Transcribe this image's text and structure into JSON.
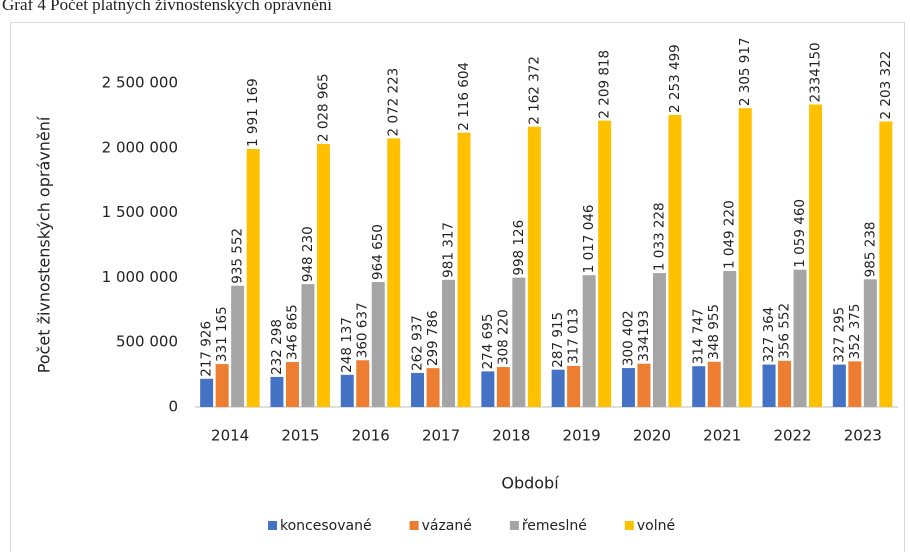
{
  "chart_data": {
    "type": "bar",
    "title": "Graf 4 Počet platných živnostenských oprávnění",
    "x_label": "Období",
    "y_label": "Počet živnostenských oprávnění",
    "categories": [
      "2014",
      "2015",
      "2016",
      "2017",
      "2018",
      "2019",
      "2020",
      "2021",
      "2022",
      "2023"
    ],
    "series": [
      {
        "name": "koncesované",
        "color": "#4472c4",
        "values": [
          217926,
          232298,
          248137,
          262937,
          274695,
          287915,
          300402,
          314747,
          327364,
          327295
        ],
        "value_labels": [
          "217 926",
          "232 298",
          "248 137",
          "262 937",
          "274 695",
          "287 915",
          "300 402",
          "314 747",
          "327 364",
          "327 295"
        ]
      },
      {
        "name": "vázané",
        "color": "#ed7d31",
        "values": [
          331165,
          346865,
          360637,
          299786,
          308220,
          317013,
          334193,
          348955,
          356552,
          352375
        ],
        "value_labels": [
          "331 165",
          "346 865",
          "360 637",
          "299 786",
          "308 220",
          "317 013",
          "334193",
          "348 955",
          "356 552",
          "352 375"
        ]
      },
      {
        "name": "řemeslné",
        "color": "#a5a5a5",
        "values": [
          935552,
          948230,
          964650,
          981317,
          998126,
          1017046,
          1033228,
          1049220,
          1059460,
          985238
        ],
        "value_labels": [
          "935 552",
          "948 230",
          "964 650",
          "981 317",
          "998 126",
          "1 017 046",
          "1 033 228",
          "1 049 220",
          "1 059 460",
          "985 238"
        ]
      },
      {
        "name": "volné",
        "color": "#ffc000",
        "values": [
          1991169,
          2028965,
          2072223,
          2116604,
          2162372,
          2209818,
          2253499,
          2305917,
          2334150,
          2203322
        ],
        "value_labels": [
          "1 991 169",
          "2 028 965",
          "2 072 223",
          "2 116 604",
          "2 162 372",
          "2 209 818",
          "2 253 499",
          "2 305 917",
          "2334150",
          "2 203 322"
        ]
      }
    ],
    "ylim": [
      0,
      2500000
    ],
    "yticks": [
      0,
      {
        "value": 500000,
        "label": "500 000"
      },
      {
        "value": 1000000,
        "label": "1 000 000"
      },
      {
        "value": 1500000,
        "label": "1 500 000"
      },
      {
        "value": 2000000,
        "label": "2 000 000"
      },
      {
        "value": 2500000,
        "label": "2 500 000"
      }
    ],
    "grid": false,
    "legend": "bottom"
  }
}
